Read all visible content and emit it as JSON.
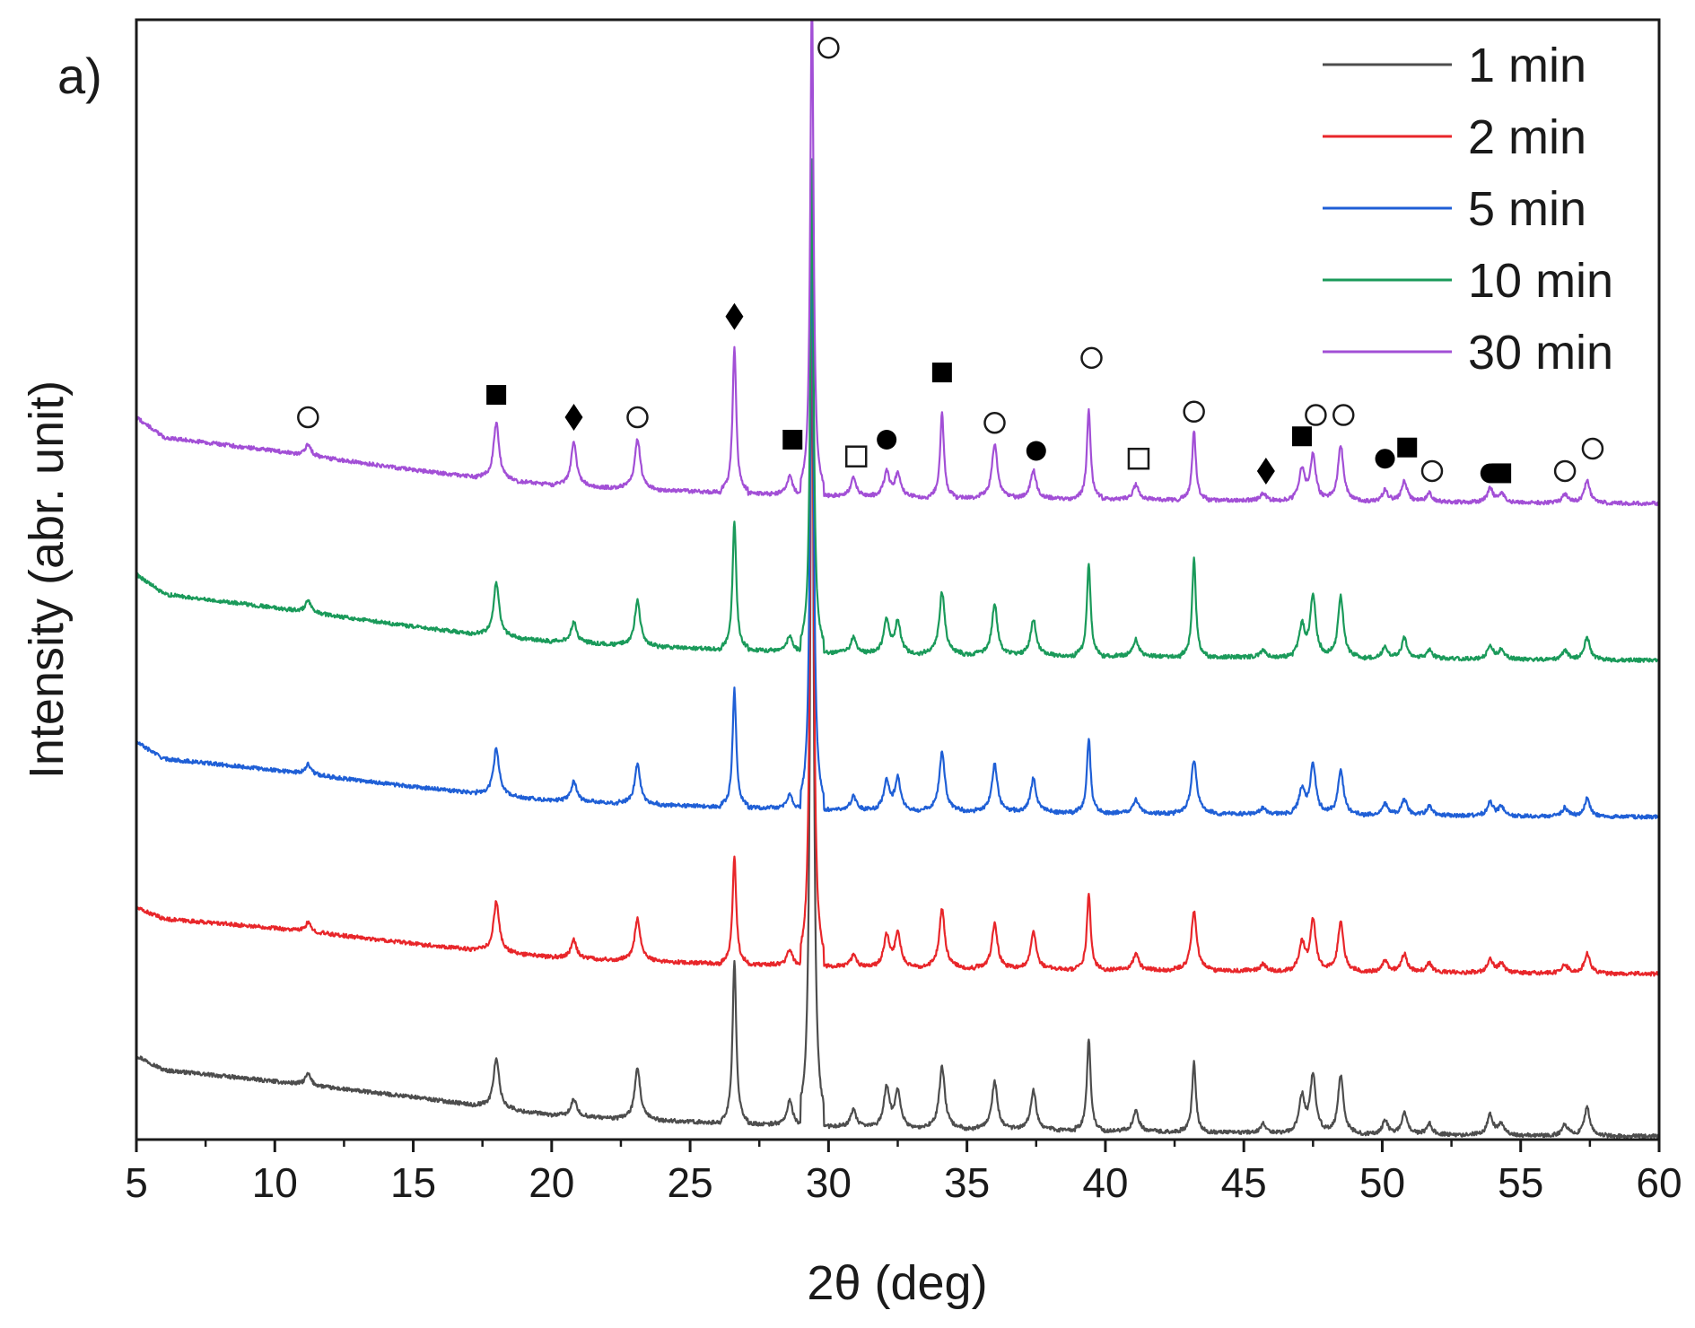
{
  "chart_data": {
    "type": "line",
    "panel_label": "a)",
    "xlabel": "2θ (deg)",
    "ylabel": "Intensity (abr. unit)",
    "xlim": [
      5,
      60
    ],
    "ylim": [
      0,
      10
    ],
    "x_ticks": [
      5,
      10,
      15,
      20,
      25,
      30,
      35,
      40,
      45,
      50,
      55,
      60
    ],
    "x_tick_labels": [
      "5",
      "10",
      "15",
      "20",
      "25",
      "30",
      "35",
      "40",
      "45",
      "50",
      "55",
      "60"
    ],
    "y_ticks_shown": false,
    "legend_position": "top-right",
    "peak_positions_2theta": [
      11.2,
      18.0,
      20.8,
      23.1,
      26.6,
      28.6,
      29.4,
      30.9,
      32.1,
      32.5,
      34.1,
      36.0,
      37.4,
      39.4,
      41.1,
      43.2,
      45.7,
      47.1,
      47.5,
      48.5,
      50.1,
      50.8,
      51.7,
      53.9,
      54.3,
      56.6,
      57.4
    ],
    "series": [
      {
        "name": "1 min",
        "color": "#4d4d4d",
        "offset": 0.0,
        "baseline": {
          "x": [
            5,
            6,
            10,
            15,
            17.5,
            20,
            25,
            30,
            40,
            50,
            60
          ],
          "y": [
            0.75,
            0.62,
            0.52,
            0.38,
            0.3,
            0.22,
            0.16,
            0.12,
            0.08,
            0.05,
            0.03
          ]
        },
        "peaks": {
          "x": [
            11.2,
            18.0,
            20.8,
            23.1,
            26.6,
            28.6,
            29.4,
            30.9,
            32.1,
            32.5,
            34.1,
            36.0,
            37.4,
            39.4,
            41.1,
            43.2,
            45.7,
            47.1,
            47.5,
            48.5,
            50.1,
            50.8,
            51.7,
            53.9,
            54.3,
            56.6,
            57.4
          ],
          "height": [
            0.1,
            0.45,
            0.15,
            0.45,
            1.45,
            0.22,
            7.8,
            0.15,
            0.35,
            0.32,
            0.55,
            0.42,
            0.35,
            0.82,
            0.18,
            0.62,
            0.08,
            0.32,
            0.52,
            0.52,
            0.12,
            0.2,
            0.1,
            0.18,
            0.1,
            0.1,
            0.25
          ]
        }
      },
      {
        "name": "2 min",
        "color": "#e8262a",
        "offset": 1.45,
        "baseline": {
          "x": [
            5,
            6,
            10,
            15,
            17.5,
            20,
            25,
            30,
            40,
            50,
            60
          ],
          "y": [
            0.62,
            0.52,
            0.44,
            0.3,
            0.24,
            0.18,
            0.13,
            0.1,
            0.07,
            0.05,
            0.03
          ]
        },
        "peaks": {
          "x": [
            11.2,
            18.0,
            20.8,
            23.1,
            26.6,
            28.6,
            29.4,
            30.9,
            32.1,
            32.5,
            34.1,
            36.0,
            37.4,
            39.4,
            41.1,
            43.2,
            45.7,
            47.1,
            47.5,
            48.5,
            50.1,
            50.8,
            51.7,
            53.9,
            54.3,
            56.6,
            57.4
          ],
          "height": [
            0.08,
            0.45,
            0.16,
            0.38,
            0.95,
            0.14,
            6.5,
            0.1,
            0.28,
            0.3,
            0.52,
            0.4,
            0.32,
            0.68,
            0.14,
            0.52,
            0.06,
            0.25,
            0.45,
            0.45,
            0.1,
            0.16,
            0.08,
            0.12,
            0.08,
            0.08,
            0.18
          ]
        }
      },
      {
        "name": "5 min",
        "color": "#1f5fd6",
        "offset": 2.85,
        "baseline": {
          "x": [
            5,
            6,
            10,
            15,
            17.5,
            20,
            25,
            30,
            40,
            50,
            60
          ],
          "y": [
            0.7,
            0.55,
            0.45,
            0.3,
            0.24,
            0.18,
            0.13,
            0.1,
            0.07,
            0.05,
            0.03
          ]
        },
        "peaks": {
          "x": [
            11.2,
            18.0,
            20.8,
            23.1,
            26.6,
            28.6,
            29.4,
            30.9,
            32.1,
            32.5,
            34.1,
            36.0,
            37.4,
            39.4,
            41.1,
            43.2,
            45.7,
            47.1,
            47.5,
            48.5,
            50.1,
            50.8,
            51.7,
            53.9,
            54.3,
            56.6,
            57.4
          ],
          "height": [
            0.09,
            0.42,
            0.18,
            0.35,
            1.05,
            0.12,
            5.5,
            0.12,
            0.26,
            0.28,
            0.52,
            0.42,
            0.3,
            0.66,
            0.12,
            0.48,
            0.06,
            0.22,
            0.45,
            0.4,
            0.1,
            0.14,
            0.08,
            0.12,
            0.08,
            0.08,
            0.16
          ]
        }
      },
      {
        "name": "10 min",
        "color": "#1a9a5a",
        "offset": 4.25,
        "baseline": {
          "x": [
            5,
            6,
            10,
            15,
            17.5,
            20,
            25,
            30,
            40,
            50,
            60
          ],
          "y": [
            0.8,
            0.62,
            0.5,
            0.33,
            0.26,
            0.2,
            0.14,
            0.1,
            0.07,
            0.05,
            0.03
          ]
        },
        "peaks": {
          "x": [
            11.2,
            18.0,
            20.8,
            23.1,
            26.6,
            28.6,
            29.4,
            30.9,
            32.1,
            32.5,
            34.1,
            36.0,
            37.4,
            39.4,
            41.1,
            43.2,
            45.7,
            47.1,
            47.5,
            48.5,
            50.1,
            50.8,
            51.7,
            53.9,
            54.3,
            56.6,
            57.4
          ],
          "height": [
            0.1,
            0.48,
            0.18,
            0.4,
            1.15,
            0.14,
            4.4,
            0.14,
            0.3,
            0.28,
            0.55,
            0.45,
            0.32,
            0.82,
            0.15,
            0.88,
            0.06,
            0.28,
            0.55,
            0.55,
            0.1,
            0.18,
            0.08,
            0.12,
            0.08,
            0.08,
            0.2
          ]
        }
      },
      {
        "name": "30 min",
        "color": "#a24fd6",
        "offset": 5.65,
        "baseline": {
          "x": [
            5,
            6,
            10,
            15,
            17.5,
            20,
            25,
            30,
            40,
            50,
            60
          ],
          "y": [
            0.8,
            0.62,
            0.5,
            0.33,
            0.26,
            0.2,
            0.14,
            0.1,
            0.07,
            0.05,
            0.03
          ]
        },
        "peaks": {
          "x": [
            11.2,
            18.0,
            20.8,
            23.1,
            26.6,
            28.6,
            29.4,
            30.9,
            32.1,
            32.5,
            34.1,
            36.0,
            37.4,
            39.4,
            41.1,
            43.2,
            45.7,
            47.1,
            47.5,
            48.5,
            50.1,
            50.8,
            51.7,
            53.9,
            54.3,
            56.6,
            57.4
          ],
          "height": [
            0.1,
            0.5,
            0.38,
            0.45,
            1.3,
            0.16,
            4.5,
            0.16,
            0.22,
            0.2,
            0.75,
            0.48,
            0.25,
            0.8,
            0.13,
            0.62,
            0.06,
            0.28,
            0.4,
            0.5,
            0.1,
            0.18,
            0.08,
            0.12,
            0.08,
            0.08,
            0.2
          ]
        }
      }
    ],
    "phase_markers": [
      {
        "symbol": "open-circle",
        "x": 11.2,
        "y": 6.45
      },
      {
        "symbol": "filled-square",
        "x": 18.0,
        "y": 6.65
      },
      {
        "symbol": "filled-diamond",
        "x": 20.8,
        "y": 6.45
      },
      {
        "symbol": "open-circle",
        "x": 23.1,
        "y": 6.45
      },
      {
        "symbol": "filled-diamond",
        "x": 26.6,
        "y": 7.35
      },
      {
        "symbol": "filled-square",
        "x": 28.7,
        "y": 6.25
      },
      {
        "symbol": "open-circle",
        "x": 30.0,
        "y": 9.75
      },
      {
        "symbol": "open-square",
        "x": 31.0,
        "y": 6.1
      },
      {
        "symbol": "filled-circle",
        "x": 32.1,
        "y": 6.25
      },
      {
        "symbol": "filled-square",
        "x": 34.1,
        "y": 6.85
      },
      {
        "symbol": "open-circle",
        "x": 36.0,
        "y": 6.4
      },
      {
        "symbol": "filled-circle",
        "x": 37.5,
        "y": 6.15
      },
      {
        "symbol": "open-circle",
        "x": 39.5,
        "y": 6.98
      },
      {
        "symbol": "open-square",
        "x": 41.2,
        "y": 6.08
      },
      {
        "symbol": "open-circle",
        "x": 43.2,
        "y": 6.5
      },
      {
        "symbol": "filled-diamond",
        "x": 45.8,
        "y": 5.97
      },
      {
        "symbol": "filled-square",
        "x": 47.1,
        "y": 6.28
      },
      {
        "symbol": "open-circle",
        "x": 47.6,
        "y": 6.47
      },
      {
        "symbol": "open-circle",
        "x": 48.6,
        "y": 6.47
      },
      {
        "symbol": "filled-circle",
        "x": 50.1,
        "y": 6.08
      },
      {
        "symbol": "filled-square",
        "x": 50.9,
        "y": 6.18
      },
      {
        "symbol": "open-circle",
        "x": 51.8,
        "y": 5.97
      },
      {
        "symbol": "filled-circle",
        "x": 53.9,
        "y": 5.95
      },
      {
        "symbol": "filled-square",
        "x": 54.3,
        "y": 5.95
      },
      {
        "symbol": "open-circle",
        "x": 56.6,
        "y": 5.97
      },
      {
        "symbol": "open-circle",
        "x": 57.6,
        "y": 6.17
      }
    ]
  }
}
